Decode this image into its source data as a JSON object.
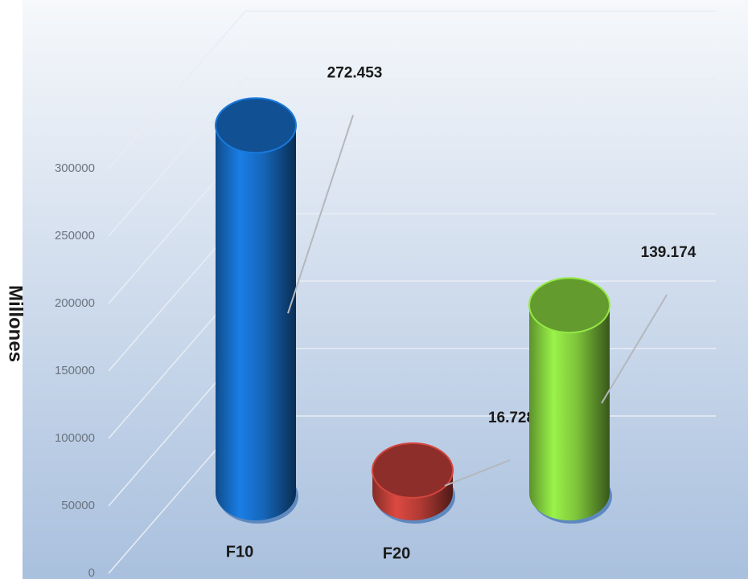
{
  "chart_data": {
    "type": "bar3d",
    "y_label": "Millones",
    "categories": [
      "F10",
      "F20",
      null
    ],
    "values": [
      272453,
      16728,
      139174
    ],
    "value_labels": [
      "272.453",
      "16.728",
      "139.174"
    ],
    "colors": [
      "#1565b8",
      "#b03a34",
      "#7cc23a"
    ],
    "ylim": [
      0,
      300000
    ],
    "yticks": [
      0,
      50000,
      100000,
      150000,
      200000,
      250000,
      300000
    ],
    "grid": true
  }
}
